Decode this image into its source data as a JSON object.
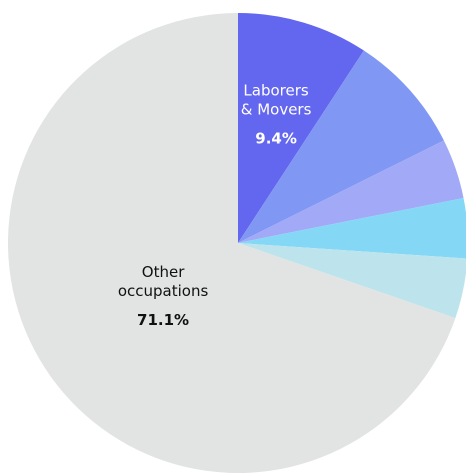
{
  "chart_data": {
    "type": "pie",
    "start_angle_deg": 0,
    "direction": "clockwise",
    "slices": [
      {
        "name": "Laborers & Movers",
        "label_lines": [
          "Laborers",
          "& Movers"
        ],
        "value": 9.4,
        "value_label": "9.4%",
        "color": "#6366ee",
        "text_color": "#ffffff"
      },
      {
        "name": "",
        "value": 8.6,
        "color": "#8097f3"
      },
      {
        "name": "",
        "value": 4.3,
        "color": "#a2a9f7"
      },
      {
        "name": "",
        "value": 4.3,
        "color": "#84d8f6"
      },
      {
        "name": "",
        "value": 4.3,
        "color": "#bde4ec"
      },
      {
        "name": "Other occupations",
        "label_lines": [
          "Other",
          "occupations"
        ],
        "value": 71.1,
        "value_label": "71.1%",
        "color": "#e1e4e3",
        "text_color": "#111111"
      }
    ]
  }
}
